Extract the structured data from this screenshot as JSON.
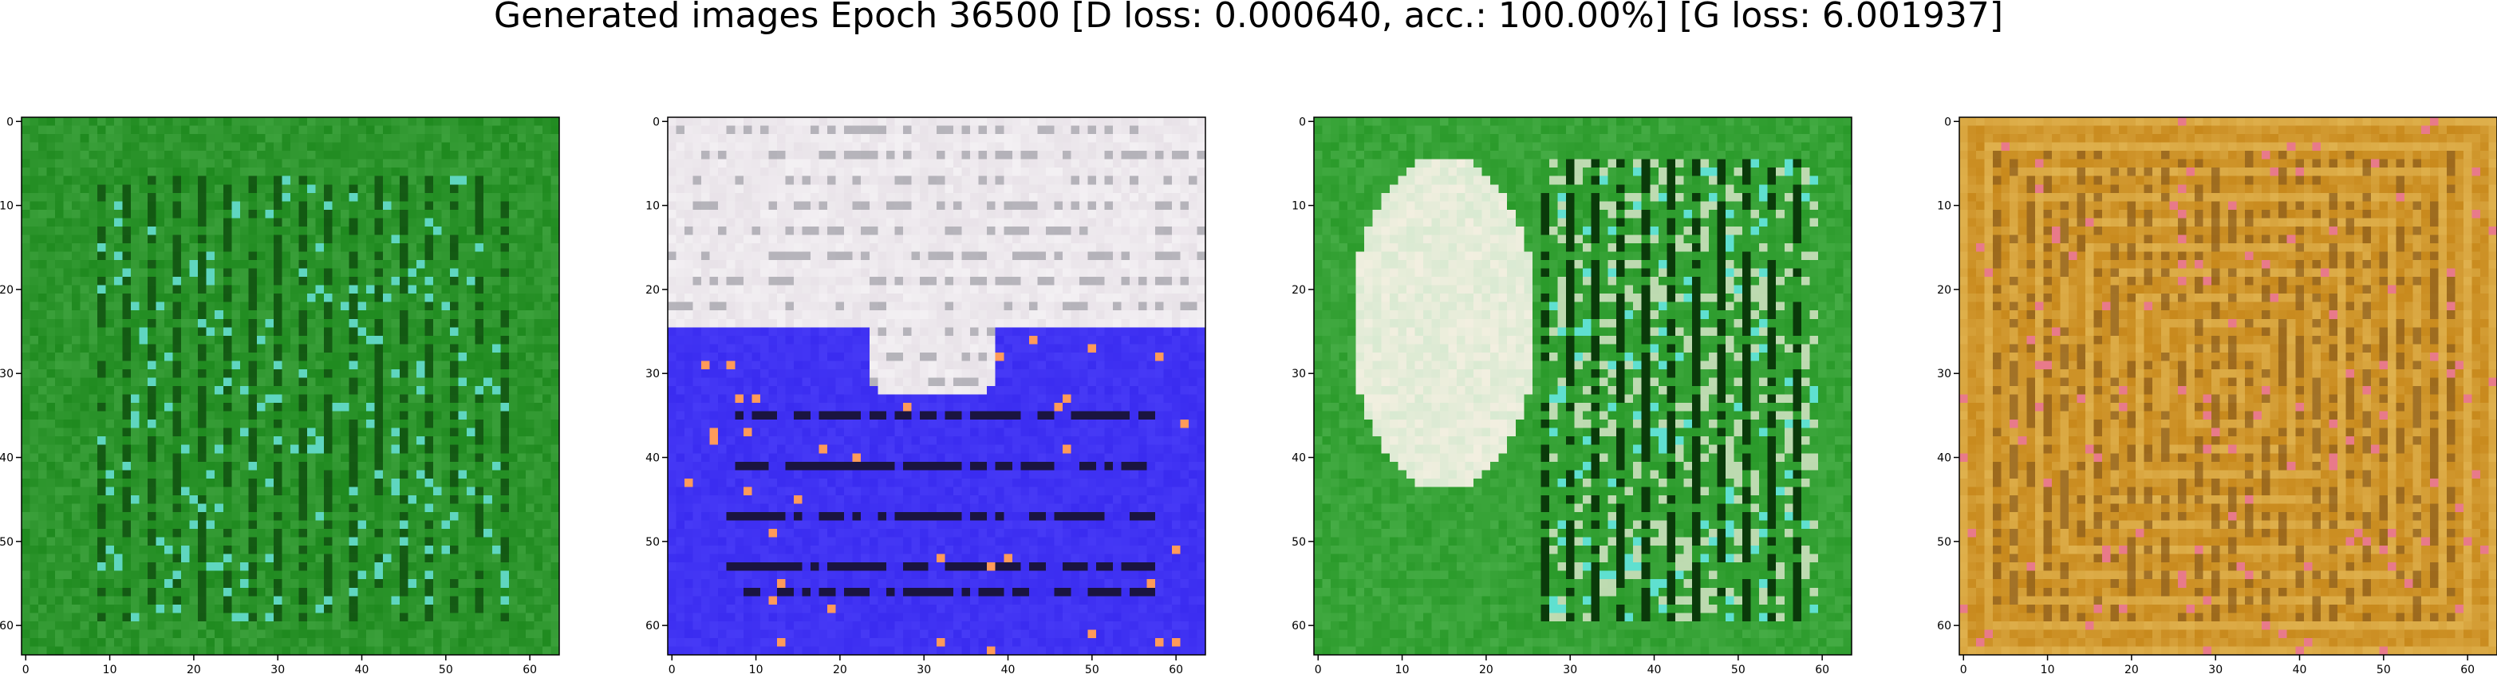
{
  "figure": {
    "title": "Generated images Epoch 36500 [D loss: 0.000640, acc.: 100.00%] [G loss: 6.001937]"
  },
  "axes": {
    "x_ticks": [
      "0",
      "10",
      "20",
      "30",
      "40",
      "50",
      "60"
    ],
    "y_ticks": [
      "0",
      "10",
      "20",
      "30",
      "40",
      "50",
      "60"
    ],
    "x_range": [
      -0.5,
      63.5
    ],
    "y_range": [
      -0.5,
      63.5
    ]
  },
  "panels": [
    {
      "description_key": "green-texture",
      "colors": {
        "base": "#1f8a1f",
        "dark": "#0c4a0c",
        "accent": "#5fd6c0",
        "highlight": "#7ed67e"
      }
    },
    {
      "description_key": "white-over-blue",
      "colors": {
        "top": "#e8e2e8",
        "bottom": "#3a2cf0",
        "dark": "#1a1440",
        "accent": "#ff9a5a"
      }
    },
    {
      "description_key": "green-with-white-blob",
      "colors": {
        "base": "#2a9a2a",
        "dark": "#0a3a0a",
        "blob": "#f2efe0",
        "accent": "#5fe0d0"
      }
    },
    {
      "description_key": "orange-frame",
      "colors": {
        "base": "#c8891c",
        "dark": "#7a4a10",
        "light": "#e8c060",
        "accent": "#e87a8a"
      }
    }
  ]
}
